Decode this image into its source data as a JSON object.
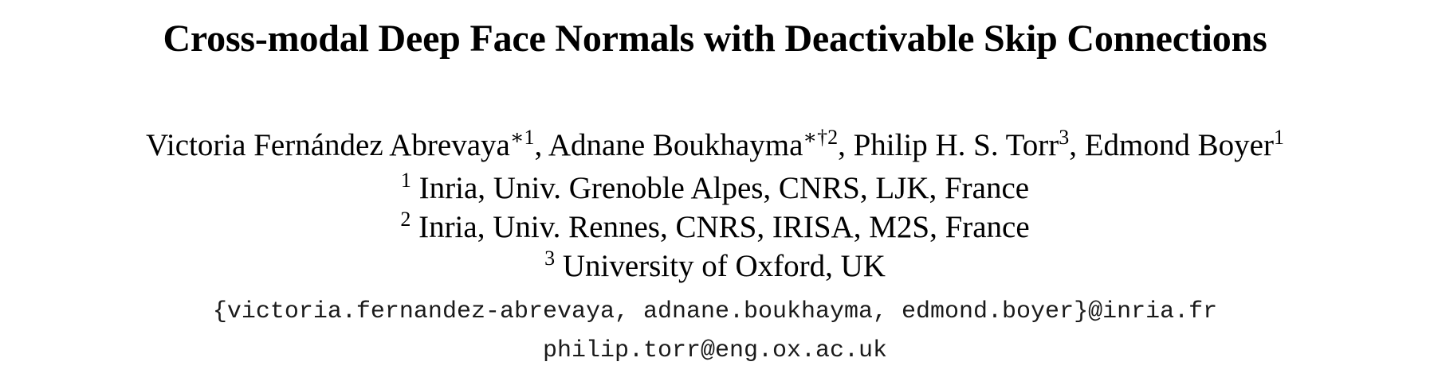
{
  "paper": {
    "title": "Cross-modal Deep Face Normals with Deactivable Skip Connections",
    "authors": [
      {
        "name": "Victoria Fernández Abrevaya",
        "mark": "∗1",
        "sep": ", "
      },
      {
        "name": "Adnane Boukhayma",
        "mark": "∗†2",
        "sep": ", "
      },
      {
        "name": "Philip H. S. Torr",
        "mark": "3",
        "sep": ", "
      },
      {
        "name": "Edmond Boyer",
        "mark": "1",
        "sep": ""
      }
    ],
    "affiliations": [
      {
        "mark": "1",
        "text": " Inria, Univ. Grenoble Alpes, CNRS, LJK, France"
      },
      {
        "mark": "2",
        "text": " Inria, Univ. Rennes, CNRS, IRISA, M2S, France"
      },
      {
        "mark": "3",
        "text": " University of Oxford, UK"
      }
    ],
    "emails": [
      "{victoria.fernandez-abrevaya, adnane.boukhayma, edmond.boyer}@inria.fr",
      "philip.torr@eng.ox.ac.uk"
    ]
  }
}
